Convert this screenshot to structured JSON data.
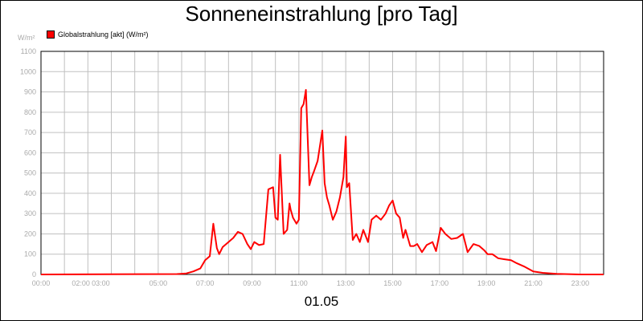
{
  "chart_data": {
    "type": "line",
    "title": "Sonneneinstrahlung [pro Tag]",
    "ylabel": "W/m²",
    "xlabel": "01.05",
    "ylim": [
      0,
      1100
    ],
    "y_ticks": [
      0,
      100,
      200,
      300,
      400,
      500,
      600,
      700,
      800,
      900,
      1000,
      1100
    ],
    "xlim_hours": [
      0,
      24
    ],
    "x_ticks": [
      {
        "label": "00:00",
        "hour": 0
      },
      {
        "label": "02:00",
        "hour": 1.7
      },
      {
        "label": "03:00",
        "hour": 2.55
      },
      {
        "label": "05:00",
        "hour": 5
      },
      {
        "label": "07:00",
        "hour": 7
      },
      {
        "label": "09:00",
        "hour": 9
      },
      {
        "label": "11:00",
        "hour": 11
      },
      {
        "label": "13:00",
        "hour": 13
      },
      {
        "label": "15:00",
        "hour": 15
      },
      {
        "label": "17:00",
        "hour": 17
      },
      {
        "label": "19:00",
        "hour": 19
      },
      {
        "label": "21:00",
        "hour": 21
      },
      {
        "label": "23:00",
        "hour": 23
      }
    ],
    "grid": true,
    "legend_position": "top-left",
    "series": [
      {
        "name": "Globalstrahlung [akt] (W/m²)",
        "color": "#ff0000",
        "x": [
          0,
          5.8,
          6.2,
          6.5,
          6.8,
          7.0,
          7.2,
          7.35,
          7.5,
          7.6,
          7.75,
          7.9,
          8.0,
          8.2,
          8.4,
          8.6,
          8.8,
          8.95,
          9.1,
          9.3,
          9.5,
          9.7,
          9.9,
          10.0,
          10.1,
          10.2,
          10.35,
          10.5,
          10.6,
          10.65,
          10.75,
          10.9,
          11.0,
          11.1,
          11.2,
          11.3,
          11.45,
          11.55,
          11.65,
          11.8,
          12.0,
          12.1,
          12.2,
          12.3,
          12.45,
          12.6,
          12.75,
          12.9,
          13.0,
          13.05,
          13.15,
          13.3,
          13.45,
          13.6,
          13.75,
          13.95,
          14.1,
          14.3,
          14.5,
          14.7,
          14.85,
          15.0,
          15.15,
          15.3,
          15.45,
          15.55,
          15.75,
          15.9,
          16.05,
          16.25,
          16.45,
          16.7,
          16.85,
          17.05,
          17.25,
          17.5,
          17.75,
          18.0,
          18.2,
          18.45,
          18.7,
          18.9,
          19.05,
          19.25,
          19.5,
          19.75,
          20.05,
          20.3,
          20.6,
          21.0,
          21.4,
          22.0,
          23.0,
          24.0
        ],
        "y": [
          0,
          2,
          5,
          15,
          30,
          70,
          90,
          250,
          130,
          100,
          135,
          150,
          160,
          180,
          210,
          200,
          150,
          125,
          160,
          145,
          150,
          420,
          430,
          280,
          270,
          590,
          200,
          220,
          350,
          320,
          280,
          250,
          270,
          820,
          840,
          910,
          440,
          480,
          510,
          560,
          710,
          450,
          380,
          340,
          270,
          310,
          380,
          480,
          680,
          430,
          450,
          170,
          200,
          160,
          220,
          160,
          270,
          290,
          270,
          300,
          340,
          365,
          300,
          280,
          180,
          220,
          140,
          140,
          150,
          110,
          145,
          160,
          115,
          230,
          200,
          175,
          180,
          200,
          110,
          150,
          140,
          120,
          100,
          100,
          80,
          75,
          70,
          55,
          40,
          15,
          8,
          3,
          0,
          0
        ]
      }
    ]
  }
}
